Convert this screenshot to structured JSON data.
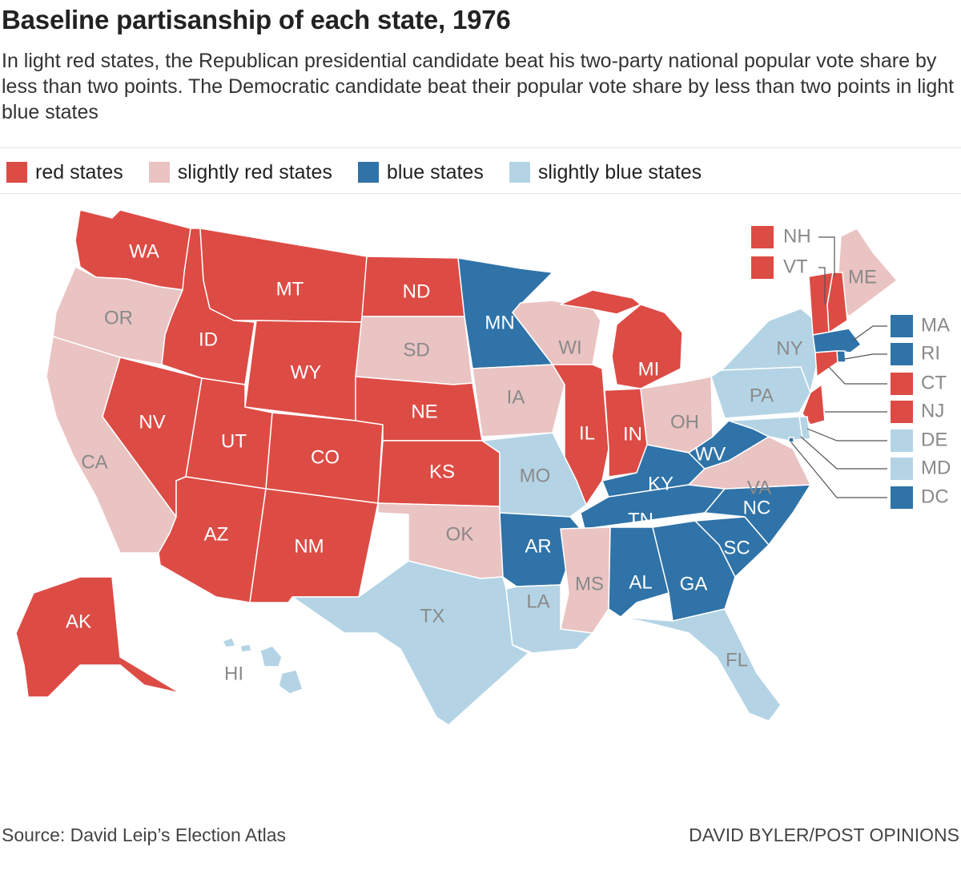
{
  "header": {
    "title": "Baseline partisanship of each state, 1976",
    "subtitle": "In light red states, the Republican presidential candidate beat his two-party national popular vote share by less than two points. The Democratic candidate beat their popular vote share by less than two points in light blue states"
  },
  "legend": [
    {
      "key": "red",
      "label": "red states"
    },
    {
      "key": "slight_red",
      "label": "slightly red states"
    },
    {
      "key": "blue",
      "label": "blue states"
    },
    {
      "key": "slight_blue",
      "label": "slightly blue states"
    }
  ],
  "colors": {
    "red": "#dd4b45",
    "slight_red": "#eac3c3",
    "blue": "#2f73a8",
    "slight_blue": "#b4d4e6",
    "label_on_dark": "#ffffff",
    "label_on_light": "#8a8a8a"
  },
  "states": [
    {
      "abbr": "WA",
      "category": "red"
    },
    {
      "abbr": "OR",
      "category": "slight_red"
    },
    {
      "abbr": "CA",
      "category": "slight_red"
    },
    {
      "abbr": "ID",
      "category": "red"
    },
    {
      "abbr": "NV",
      "category": "red"
    },
    {
      "abbr": "MT",
      "category": "red"
    },
    {
      "abbr": "WY",
      "category": "red"
    },
    {
      "abbr": "UT",
      "category": "red"
    },
    {
      "abbr": "AZ",
      "category": "red"
    },
    {
      "abbr": "CO",
      "category": "red"
    },
    {
      "abbr": "NM",
      "category": "red"
    },
    {
      "abbr": "ND",
      "category": "red"
    },
    {
      "abbr": "SD",
      "category": "slight_red"
    },
    {
      "abbr": "NE",
      "category": "red"
    },
    {
      "abbr": "KS",
      "category": "red"
    },
    {
      "abbr": "OK",
      "category": "slight_red"
    },
    {
      "abbr": "TX",
      "category": "slight_blue"
    },
    {
      "abbr": "MN",
      "category": "blue"
    },
    {
      "abbr": "IA",
      "category": "slight_red"
    },
    {
      "abbr": "MO",
      "category": "slight_blue"
    },
    {
      "abbr": "AR",
      "category": "blue"
    },
    {
      "abbr": "LA",
      "category": "slight_blue"
    },
    {
      "abbr": "WI",
      "category": "slight_red"
    },
    {
      "abbr": "IL",
      "category": "red"
    },
    {
      "abbr": "MI",
      "category": "red"
    },
    {
      "abbr": "IN",
      "category": "red"
    },
    {
      "abbr": "OH",
      "category": "slight_red"
    },
    {
      "abbr": "KY",
      "category": "blue"
    },
    {
      "abbr": "TN",
      "category": "blue"
    },
    {
      "abbr": "MS",
      "category": "slight_red"
    },
    {
      "abbr": "AL",
      "category": "blue"
    },
    {
      "abbr": "GA",
      "category": "blue"
    },
    {
      "abbr": "FL",
      "category": "slight_blue"
    },
    {
      "abbr": "SC",
      "category": "blue"
    },
    {
      "abbr": "NC",
      "category": "blue"
    },
    {
      "abbr": "VA",
      "category": "slight_red"
    },
    {
      "abbr": "WV",
      "category": "blue"
    },
    {
      "abbr": "PA",
      "category": "slight_blue"
    },
    {
      "abbr": "NY",
      "category": "slight_blue"
    },
    {
      "abbr": "ME",
      "category": "slight_red"
    },
    {
      "abbr": "AK",
      "category": "red"
    },
    {
      "abbr": "HI",
      "category": "slight_blue"
    },
    {
      "abbr": "NH",
      "category": "red"
    },
    {
      "abbr": "VT",
      "category": "red"
    },
    {
      "abbr": "MA",
      "category": "blue"
    },
    {
      "abbr": "RI",
      "category": "blue"
    },
    {
      "abbr": "CT",
      "category": "red"
    },
    {
      "abbr": "NJ",
      "category": "red"
    },
    {
      "abbr": "DE",
      "category": "slight_blue"
    },
    {
      "abbr": "MD",
      "category": "slight_blue"
    },
    {
      "abbr": "DC",
      "category": "blue"
    }
  ],
  "footer": {
    "source": "Source: David Leip’s Election Atlas",
    "credit": "DAVID BYLER/POST OPINIONS"
  }
}
